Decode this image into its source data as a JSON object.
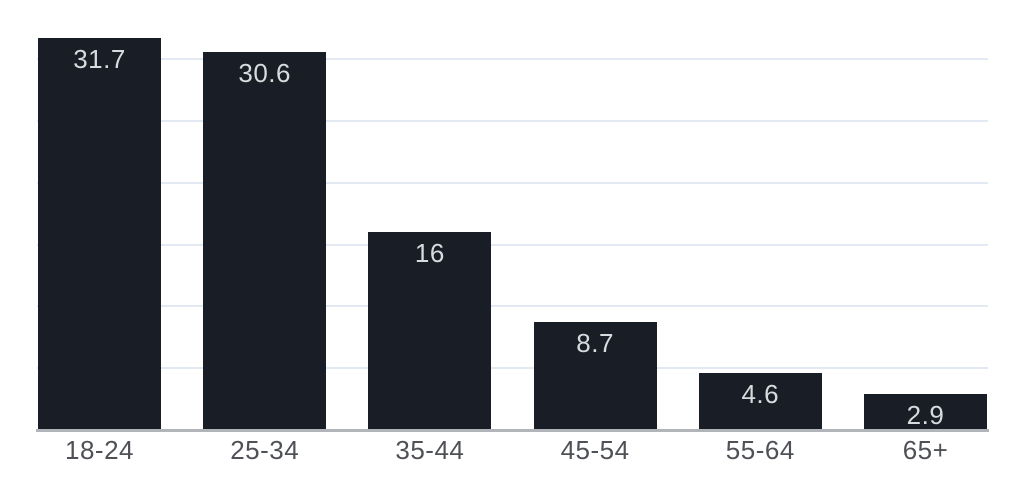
{
  "chart_data": {
    "type": "bar",
    "categories": [
      "18-24",
      "25-34",
      "35-44",
      "45-54",
      "55-64",
      "65+"
    ],
    "values": [
      31.7,
      30.6,
      16,
      8.7,
      4.6,
      2.9
    ],
    "value_labels": [
      "31.7",
      "30.6",
      "16",
      "8.7",
      "4.6",
      "2.9"
    ],
    "ylim": [
      0,
      34.77
    ],
    "grid_step": 5,
    "grid": true,
    "legend": false,
    "value_label_position": "inside-top",
    "colors": {
      "bar": "#181d26",
      "value_label": "#d8dbde",
      "axis_label": "#4e5156",
      "gridline": "#e2e9f3",
      "axis_line": "#b1b5ba",
      "background": "#ffffff"
    }
  }
}
